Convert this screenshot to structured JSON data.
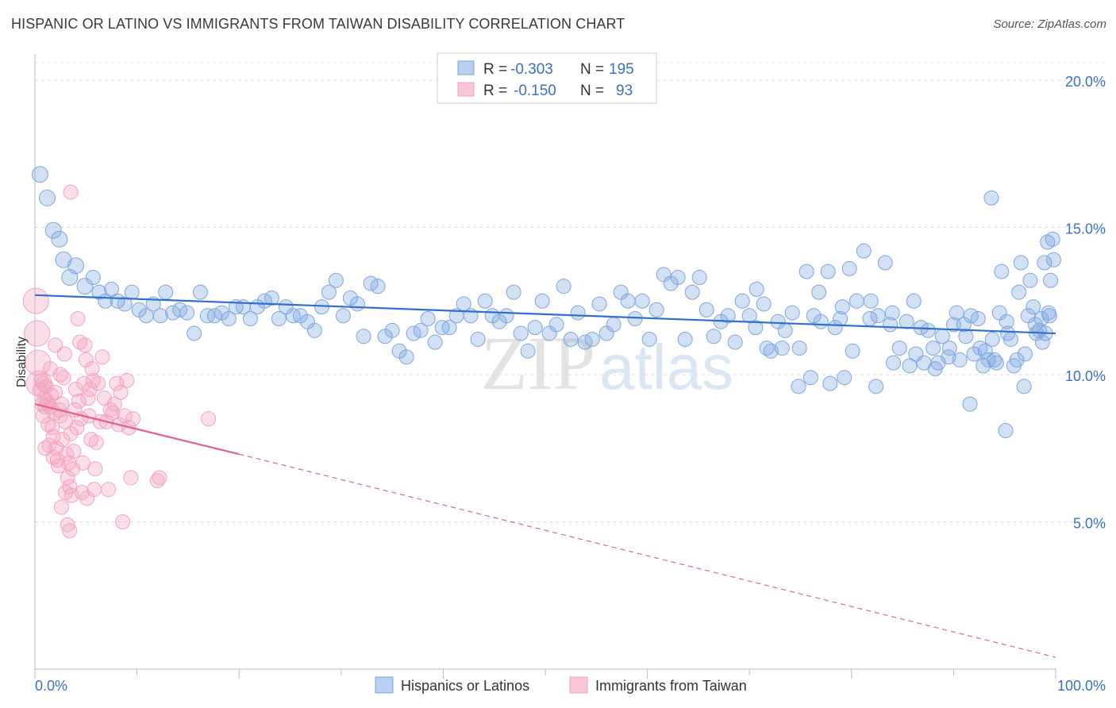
{
  "chart_data": {
    "type": "scatter",
    "title": "HISPANIC OR LATINO VS IMMIGRANTS FROM TAIWAN DISABILITY CORRELATION CHART",
    "source": "Source: ZipAtlas.com",
    "xlabel": "",
    "ylabel": "Disability",
    "xlim": [
      0,
      100
    ],
    "ylim": [
      0,
      20.7
    ],
    "x_tick_labels": [
      "0.0%",
      "100.0%"
    ],
    "y_ticks": [
      5,
      10,
      15,
      20
    ],
    "y_tick_labels": [
      "5.0%",
      "10.0%",
      "15.0%",
      "20.0%"
    ],
    "grid": true,
    "watermark": "ZIPatlas",
    "legend_top": [
      {
        "r_label": "R =",
        "r_value": "-0.303",
        "n_label": "N =",
        "n_value": "195"
      },
      {
        "r_label": "R =",
        "r_value": "-0.150",
        "n_label": "N =",
        "n_value": "93"
      }
    ],
    "series": [
      {
        "name": "Hispanics or Latinos",
        "color": "#7ea6e0",
        "trend_color": "#2f6fd0",
        "trend": {
          "x0": 0,
          "y0": 12.7,
          "x1": 100,
          "y1": 11.4
        },
        "points": [
          [
            0.5,
            16.8
          ],
          [
            1.2,
            16.0
          ],
          [
            1.8,
            14.9
          ],
          [
            2.4,
            14.6
          ],
          [
            2.8,
            13.9
          ],
          [
            3.4,
            13.3
          ],
          [
            4,
            13.7
          ],
          [
            4.9,
            13.0
          ],
          [
            5.7,
            13.3
          ],
          [
            6.3,
            12.8
          ],
          [
            6.9,
            12.5
          ],
          [
            7.5,
            12.9
          ],
          [
            8.1,
            12.5
          ],
          [
            8.8,
            12.4
          ],
          [
            9.5,
            12.8
          ],
          [
            10.2,
            12.2
          ],
          [
            10.9,
            12.0
          ],
          [
            11.6,
            12.4
          ],
          [
            12.3,
            12.0
          ],
          [
            12.8,
            12.8
          ],
          [
            13.5,
            12.1
          ],
          [
            14.2,
            12.2
          ],
          [
            14.9,
            12.1
          ],
          [
            15.6,
            11.4
          ],
          [
            16.2,
            12.8
          ],
          [
            16.9,
            12.0
          ],
          [
            17.6,
            12.0
          ],
          [
            18.3,
            12.1
          ],
          [
            19,
            11.9
          ],
          [
            19.7,
            12.3
          ],
          [
            20.4,
            12.3
          ],
          [
            21.1,
            11.9
          ],
          [
            21.8,
            12.3
          ],
          [
            22.5,
            12.5
          ],
          [
            23.2,
            12.6
          ],
          [
            23.9,
            11.9
          ],
          [
            24.6,
            12.3
          ],
          [
            25.3,
            12.0
          ],
          [
            26,
            12.0
          ],
          [
            26.7,
            11.8
          ],
          [
            27.4,
            11.5
          ],
          [
            28.1,
            12.3
          ],
          [
            28.8,
            12.8
          ],
          [
            29.5,
            13.2
          ],
          [
            30.2,
            12.0
          ],
          [
            30.9,
            12.6
          ],
          [
            31.6,
            12.4
          ],
          [
            32.2,
            11.3
          ],
          [
            32.9,
            13.1
          ],
          [
            33.6,
            13.0
          ],
          [
            34.3,
            11.3
          ],
          [
            35,
            11.5
          ],
          [
            35.7,
            10.8
          ],
          [
            36.4,
            10.6
          ],
          [
            37.1,
            11.4
          ],
          [
            37.8,
            11.5
          ],
          [
            38.5,
            11.9
          ],
          [
            39.2,
            11.1
          ],
          [
            39.9,
            11.6
          ],
          [
            40.6,
            11.6
          ],
          [
            41.3,
            12.0
          ],
          [
            42,
            12.4
          ],
          [
            42.7,
            12.0
          ],
          [
            43.4,
            11.2
          ],
          [
            44.1,
            12.5
          ],
          [
            44.8,
            12.0
          ],
          [
            45.5,
            11.8
          ],
          [
            46.2,
            12.0
          ],
          [
            46.9,
            12.8
          ],
          [
            47.6,
            11.4
          ],
          [
            48.3,
            10.8
          ],
          [
            49,
            11.6
          ],
          [
            49.7,
            12.5
          ],
          [
            50.4,
            11.4
          ],
          [
            51.1,
            11.7
          ],
          [
            51.8,
            13.0
          ],
          [
            52.5,
            11.2
          ],
          [
            53.2,
            12.1
          ],
          [
            53.9,
            11.1
          ],
          [
            54.6,
            11.2
          ],
          [
            55.3,
            12.4
          ],
          [
            56,
            11.4
          ],
          [
            56.7,
            11.7
          ],
          [
            57.4,
            12.8
          ],
          [
            58.1,
            12.5
          ],
          [
            58.8,
            11.9
          ],
          [
            59.5,
            12.5
          ],
          [
            60.2,
            11.2
          ],
          [
            60.9,
            12.2
          ],
          [
            61.6,
            13.4
          ],
          [
            62.3,
            13.1
          ],
          [
            63,
            13.3
          ],
          [
            63.7,
            11.2
          ],
          [
            64.4,
            12.8
          ],
          [
            65.1,
            13.3
          ],
          [
            65.8,
            12.2
          ],
          [
            66.5,
            11.3
          ],
          [
            67.2,
            11.8
          ],
          [
            67.9,
            12.0
          ],
          [
            68.6,
            11.1
          ],
          [
            69.3,
            12.5
          ],
          [
            70,
            12.0
          ],
          [
            70.7,
            12.9
          ],
          [
            71.4,
            12.4
          ],
          [
            72.1,
            10.8
          ],
          [
            72.8,
            11.8
          ],
          [
            73.5,
            11.5
          ],
          [
            74.2,
            12.1
          ],
          [
            74.9,
            10.9
          ],
          [
            75.6,
            13.5
          ],
          [
            76.3,
            12.0
          ],
          [
            77,
            11.8
          ],
          [
            77.7,
            13.5
          ],
          [
            78.4,
            11.6
          ],
          [
            79.1,
            12.3
          ],
          [
            79.8,
            13.6
          ],
          [
            80.5,
            12.5
          ],
          [
            81.2,
            14.2
          ],
          [
            81.9,
            12.5
          ],
          [
            82.6,
            12.0
          ],
          [
            83.3,
            13.8
          ],
          [
            84,
            12.1
          ],
          [
            84.7,
            10.9
          ],
          [
            85.4,
            11.8
          ],
          [
            86.1,
            12.5
          ],
          [
            86.8,
            11.6
          ],
          [
            87.5,
            11.5
          ],
          [
            88.2,
            10.2
          ],
          [
            88.9,
            11.3
          ],
          [
            89.6,
            10.9
          ],
          [
            90.3,
            12.1
          ],
          [
            91,
            11.7
          ],
          [
            91.7,
            12.0
          ],
          [
            92.4,
            11.9
          ],
          [
            93.1,
            10.8
          ],
          [
            93.8,
            11.2
          ],
          [
            94.5,
            12.1
          ],
          [
            95.2,
            11.8
          ],
          [
            95.9,
            10.3
          ],
          [
            96.6,
            13.8
          ],
          [
            97.3,
            12.0
          ],
          [
            98,
            11.7
          ],
          [
            98.7,
            11.1
          ],
          [
            99.4,
            12.0
          ],
          [
            99.7,
            14.6
          ],
          [
            76.8,
            12.8
          ],
          [
            78.9,
            11.9
          ],
          [
            81.8,
            11.9
          ],
          [
            83.8,
            11.7
          ],
          [
            86.3,
            10.7
          ],
          [
            88.0,
            10.9
          ],
          [
            89.5,
            10.6
          ],
          [
            90.0,
            11.7
          ],
          [
            91.2,
            11.3
          ],
          [
            92.0,
            10.7
          ],
          [
            92.6,
            10.9
          ],
          [
            93.4,
            10.5
          ],
          [
            94.0,
            10.5
          ],
          [
            95.6,
            11.2
          ],
          [
            96.9,
            9.6
          ],
          [
            97.8,
            12.3
          ],
          [
            98.4,
            11.5
          ],
          [
            99.0,
            11.4
          ],
          [
            99.5,
            13.2
          ],
          [
            70.6,
            11.6
          ],
          [
            71.7,
            10.9
          ],
          [
            73.2,
            10.9
          ],
          [
            74.8,
            9.6
          ],
          [
            76.0,
            9.9
          ],
          [
            77.9,
            9.7
          ],
          [
            79.3,
            9.9
          ],
          [
            80.1,
            10.8
          ],
          [
            82.4,
            9.6
          ],
          [
            84.1,
            10.4
          ],
          [
            85.7,
            10.3
          ],
          [
            87.1,
            10.4
          ],
          [
            88.5,
            10.4
          ],
          [
            90.6,
            10.5
          ],
          [
            91.6,
            9.0
          ],
          [
            92.9,
            10.3
          ],
          [
            94.2,
            10.4
          ],
          [
            95.1,
            8.1
          ],
          [
            96.2,
            10.5
          ],
          [
            97.0,
            10.7
          ],
          [
            98.1,
            11.4
          ],
          [
            99.3,
            12.1
          ],
          [
            99.8,
            13.9
          ],
          [
            93.7,
            16.0
          ],
          [
            94.7,
            13.5
          ],
          [
            95.3,
            11.4
          ],
          [
            96.4,
            12.8
          ],
          [
            97.5,
            13.2
          ],
          [
            98.6,
            11.9
          ],
          [
            99.2,
            14.5
          ],
          [
            98.9,
            13.8
          ]
        ]
      },
      {
        "name": "Immigrants from Taiwan",
        "color": "#f4a3bd",
        "trend_color": "#e2608c",
        "trend": {
          "x0": 0,
          "y0": 9.0,
          "x1": 20,
          "y1": 7.3
        },
        "trend_dashed": {
          "x0": 20,
          "y0": 7.3,
          "x1": 100,
          "y1": 0.4
        },
        "points": [
          [
            0.1,
            12.5
          ],
          [
            0.2,
            11.4
          ],
          [
            0.3,
            10.4
          ],
          [
            0.4,
            9.7
          ],
          [
            0.5,
            9.5
          ],
          [
            0.6,
            9.8
          ],
          [
            0.7,
            9.0
          ],
          [
            0.8,
            8.6
          ],
          [
            0.9,
            9.2
          ],
          [
            1.0,
            8.9
          ],
          [
            1.1,
            9.6
          ],
          [
            1.2,
            9.1
          ],
          [
            1.3,
            8.3
          ],
          [
            1.4,
            7.6
          ],
          [
            1.5,
            8.9
          ],
          [
            1.6,
            9.3
          ],
          [
            1.7,
            8.2
          ],
          [
            1.8,
            7.9
          ],
          [
            1.9,
            8.7
          ],
          [
            2.0,
            9.4
          ],
          [
            2.1,
            7.5
          ],
          [
            2.2,
            7.1
          ],
          [
            2.3,
            6.9
          ],
          [
            2.4,
            8.8
          ],
          [
            2.5,
            8.6
          ],
          [
            2.6,
            9.0
          ],
          [
            2.7,
            7.8
          ],
          [
            2.8,
            9.9
          ],
          [
            2.9,
            10.7
          ],
          [
            3.0,
            8.4
          ],
          [
            3.1,
            7.3
          ],
          [
            3.2,
            6.5
          ],
          [
            3.3,
            7.0
          ],
          [
            3.4,
            6.2
          ],
          [
            3.5,
            8.0
          ],
          [
            3.6,
            5.9
          ],
          [
            3.7,
            6.8
          ],
          [
            3.8,
            7.4
          ],
          [
            3.9,
            8.8
          ],
          [
            4.0,
            9.5
          ],
          [
            4.1,
            8.2
          ],
          [
            4.2,
            11.9
          ],
          [
            4.3,
            9.1
          ],
          [
            4.4,
            11.1
          ],
          [
            4.5,
            8.5
          ],
          [
            4.6,
            6.0
          ],
          [
            4.7,
            7.0
          ],
          [
            4.8,
            9.7
          ],
          [
            4.9,
            11.0
          ],
          [
            5.0,
            10.5
          ],
          [
            5.1,
            5.8
          ],
          [
            5.2,
            9.2
          ],
          [
            5.3,
            8.6
          ],
          [
            5.4,
            9.5
          ],
          [
            5.5,
            7.8
          ],
          [
            5.6,
            10.2
          ],
          [
            5.7,
            9.8
          ],
          [
            5.8,
            6.1
          ],
          [
            5.9,
            6.8
          ],
          [
            6.0,
            7.7
          ],
          [
            6.2,
            9.7
          ],
          [
            6.4,
            8.4
          ],
          [
            6.6,
            10.6
          ],
          [
            6.8,
            9.2
          ],
          [
            7.0,
            8.4
          ],
          [
            7.2,
            6.1
          ],
          [
            7.4,
            8.8
          ],
          [
            7.6,
            8.7
          ],
          [
            7.8,
            9.0
          ],
          [
            8.0,
            9.7
          ],
          [
            8.2,
            8.3
          ],
          [
            8.4,
            9.4
          ],
          [
            8.6,
            5.0
          ],
          [
            8.8,
            8.6
          ],
          [
            9.0,
            9.8
          ],
          [
            9.2,
            8.2
          ],
          [
            9.4,
            6.5
          ],
          [
            9.6,
            8.5
          ],
          [
            12.0,
            6.4
          ],
          [
            12.2,
            6.5
          ],
          [
            17.0,
            8.5
          ],
          [
            3.5,
            16.2
          ],
          [
            2.0,
            11.0
          ],
          [
            2.5,
            10.0
          ],
          [
            1.5,
            10.2
          ],
          [
            3.0,
            6.0
          ],
          [
            3.2,
            4.9
          ],
          [
            3.4,
            4.7
          ],
          [
            2.6,
            5.5
          ],
          [
            1.8,
            7.2
          ],
          [
            1.0,
            7.5
          ],
          [
            0.8,
            9.7
          ],
          [
            1.3,
            9.0
          ]
        ]
      }
    ]
  },
  "bottom_legend": [
    {
      "label": "Hispanics or Latinos"
    },
    {
      "label": "Immigrants from Taiwan"
    }
  ]
}
